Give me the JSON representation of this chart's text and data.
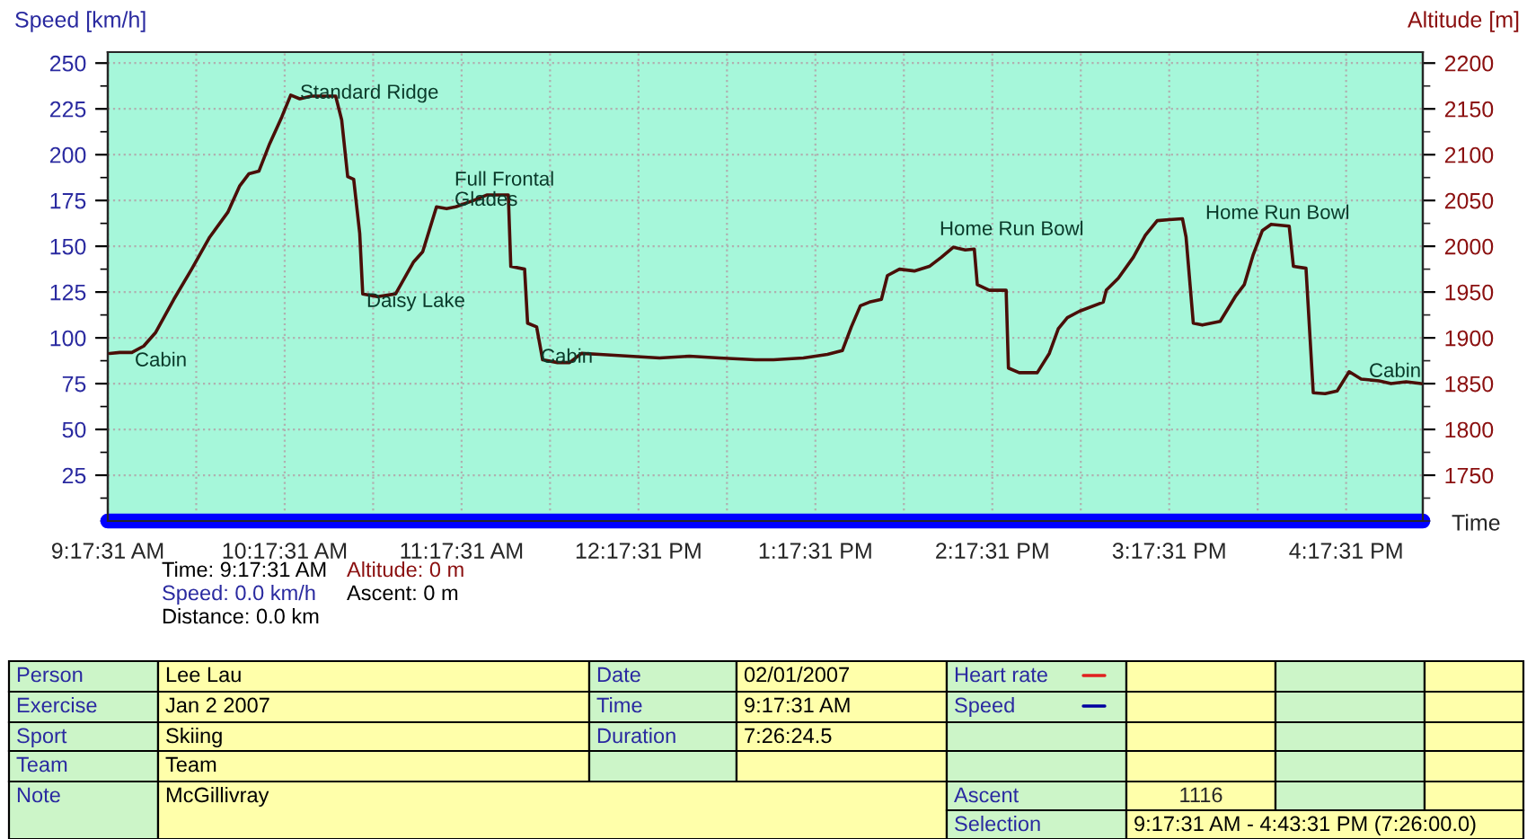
{
  "chart_data": {
    "type": "line",
    "xlabel": "Time",
    "ylabel": "Speed [km/h]",
    "y2label": "Altitude [m]",
    "xlim": [
      9.2919,
      16.7253
    ],
    "xticks": [
      {
        "value": 9.2919,
        "label": "9:17:31 AM"
      },
      {
        "value": 10.2919,
        "label": "10:17:31 AM"
      },
      {
        "value": 11.2919,
        "label": "11:17:31 AM"
      },
      {
        "value": 12.2919,
        "label": "12:17:31 PM"
      },
      {
        "value": 13.2919,
        "label": "1:17:31 PM"
      },
      {
        "value": 14.2919,
        "label": "2:17:31 PM"
      },
      {
        "value": 15.2919,
        "label": "3:17:31 PM"
      },
      {
        "value": 16.2919,
        "label": "4:17:31 PM"
      }
    ],
    "ylim": [
      0,
      256
    ],
    "yticks": [
      25,
      50,
      75,
      100,
      125,
      150,
      175,
      200,
      225,
      250
    ],
    "y2lim": [
      1700,
      2212
    ],
    "y2ticks": [
      1750,
      1800,
      1850,
      1900,
      1950,
      2000,
      2050,
      2100,
      2150,
      2200
    ],
    "grid": true,
    "line_style": "solid",
    "marker": "none",
    "series": [
      {
        "color": "#0000ff",
        "x": [
          9.2919,
          16.7253
        ],
        "values": [
          0,
          0
        ]
      },
      {
        "color": "#4a0f08",
        "axis": "y2",
        "x": [
          9.302,
          9.36,
          9.428,
          9.495,
          9.563,
          9.665,
          9.766,
          9.868,
          9.97,
          10.038,
          10.089,
          10.146,
          10.207,
          10.275,
          10.326,
          10.377,
          10.444,
          10.58,
          10.614,
          10.648,
          10.682,
          10.716,
          10.733,
          10.817,
          10.919,
          11.021,
          11.072,
          11.15,
          11.207,
          11.258,
          11.36,
          11.434,
          11.556,
          11.57,
          11.648,
          11.665,
          11.716,
          11.75,
          11.834,
          11.902,
          11.97,
          12.072,
          12.241,
          12.411,
          12.58,
          12.749,
          12.953,
          13.055,
          13.224,
          13.36,
          13.444,
          13.495,
          13.546,
          13.597,
          13.665,
          13.699,
          13.767,
          13.851,
          13.936,
          14.004,
          14.072,
          14.139,
          14.19,
          14.207,
          14.275,
          14.37,
          14.383,
          14.444,
          14.546,
          14.614,
          14.665,
          14.716,
          14.784,
          14.919,
          14.936,
          15.004,
          15.089,
          15.157,
          15.224,
          15.292,
          15.367,
          15.387,
          15.428,
          15.479,
          15.58,
          15.665,
          15.716,
          15.767,
          15.818,
          15.868,
          15.97,
          15.994,
          16.065,
          16.106,
          16.173,
          16.241,
          16.309,
          16.377,
          16.478,
          16.546,
          16.631,
          16.716
        ],
        "values": [
          1883,
          1884,
          1884,
          1891,
          1906,
          1942,
          1975,
          2010,
          2037,
          2066,
          2079,
          2082,
          2112,
          2141,
          2165,
          2161,
          2164,
          2164,
          2138,
          2076,
          2073,
          2014,
          1948,
          1945,
          1948,
          1983,
          1994,
          2043,
          2041,
          2043,
          2050,
          2056,
          2056,
          1978,
          1975,
          1916,
          1912,
          1876,
          1873,
          1873,
          1883,
          1882,
          1880,
          1878,
          1880,
          1878,
          1876,
          1876,
          1878,
          1882,
          1886,
          1912,
          1935,
          1939,
          1942,
          1968,
          1975,
          1973,
          1978,
          1988,
          1999,
          1996,
          1997,
          1958,
          1952,
          1952,
          1867,
          1862,
          1862,
          1883,
          1910,
          1922,
          1929,
          1939,
          1952,
          1965,
          1988,
          2012,
          2028,
          2029,
          2030,
          2010,
          1916,
          1914,
          1918,
          1945,
          1958,
          1991,
          2017,
          2024,
          2022,
          1978,
          1976,
          1840,
          1839,
          1842,
          1863,
          1855,
          1853,
          1850,
          1852,
          1850
        ]
      }
    ],
    "annotations": [
      "Cabin",
      "Standard Ridge",
      "Daisy Lake",
      "Full Frontal\nGlades",
      "Cabin",
      "Home Run Bowl",
      "Home Run Bowl",
      "Cabin",
      "Time: 9:17:31 AM",
      "Speed: 0.0 km/h",
      "Distance: 0.0 km",
      "Altitude: 0 m",
      "Ascent: 0 m",
      "Person",
      "Lee Lau",
      "Date",
      "02/01/2007",
      "Heart rate",
      "Exercise",
      "Jan 2 2007",
      "Time",
      "9:17:31 AM",
      "Speed",
      "Sport",
      "Skiing",
      "Duration",
      "7:26:24.5",
      "Team",
      "Team",
      "Note",
      "McGillivray",
      "Ascent",
      "1116",
      "Selection",
      "9:17:31 AM - 4:43:31 PM (7:26:00.0)"
    ]
  }
}
